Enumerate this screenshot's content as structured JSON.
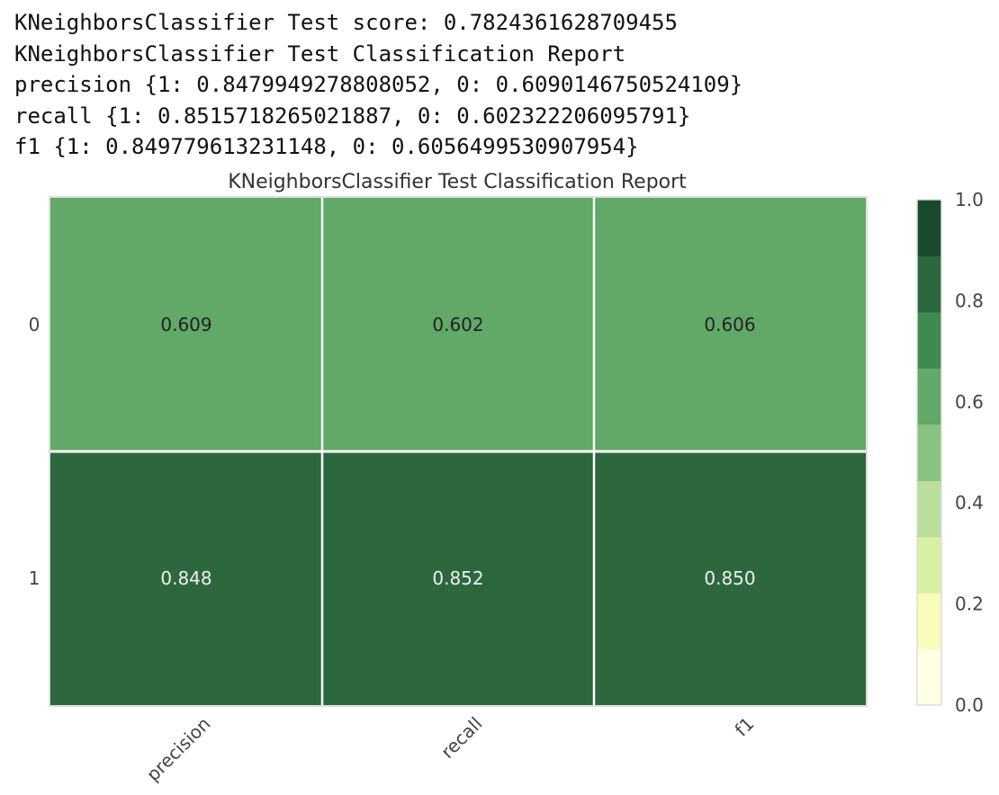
{
  "console": {
    "lines": [
      "KNeighborsClassifier Test score: 0.7824361628709455",
      "KNeighborsClassifier Test Classification Report",
      "precision {1: 0.8479949278808052, 0: 0.6090146750524109}",
      "recall {1: 0.8515718265021887, 0: 0.602322206095791}",
      "f1 {1: 0.849779613231148, 0: 0.6056499530907954}"
    ]
  },
  "chart_data": {
    "type": "heatmap",
    "title": "KNeighborsClassifier Test Classification Report",
    "xlabel": "",
    "ylabel": "",
    "x_categories": [
      "precision",
      "recall",
      "f1"
    ],
    "y_categories": [
      "0",
      "1"
    ],
    "values": [
      [
        0.609,
        0.602,
        0.606
      ],
      [
        0.848,
        0.852,
        0.85
      ]
    ],
    "value_labels": [
      [
        "0.609",
        "0.602",
        "0.606"
      ],
      [
        "0.848",
        "0.852",
        "0.850"
      ]
    ],
    "colorbar": {
      "range": [
        0.0,
        1.0
      ],
      "tick_labels": [
        "0.0",
        "0.2",
        "0.4",
        "0.6",
        "0.8",
        "1.0"
      ],
      "bins": [
        {
          "from": 0.0,
          "to": 0.111,
          "color": "#ffffe5"
        },
        {
          "from": 0.111,
          "to": 0.222,
          "color": "#f7fcb9"
        },
        {
          "from": 0.222,
          "to": 0.333,
          "color": "#d9f0a3"
        },
        {
          "from": 0.333,
          "to": 0.444,
          "color": "#b8e09a"
        },
        {
          "from": 0.444,
          "to": 0.556,
          "color": "#87c47f"
        },
        {
          "from": 0.556,
          "to": 0.667,
          "color": "#62a867"
        },
        {
          "from": 0.667,
          "to": 0.778,
          "color": "#3f8a4d"
        },
        {
          "from": 0.778,
          "to": 0.889,
          "color": "#2d673e"
        },
        {
          "from": 0.889,
          "to": 1.0,
          "color": "#1a4a2e"
        }
      ]
    },
    "grid": false,
    "colors": {
      "grid_line": "#ffffff",
      "light_cell_text": "#222222",
      "dark_cell_text": "#f0f0f0",
      "axis_text": "#444444",
      "frame": "#dddddd"
    }
  }
}
